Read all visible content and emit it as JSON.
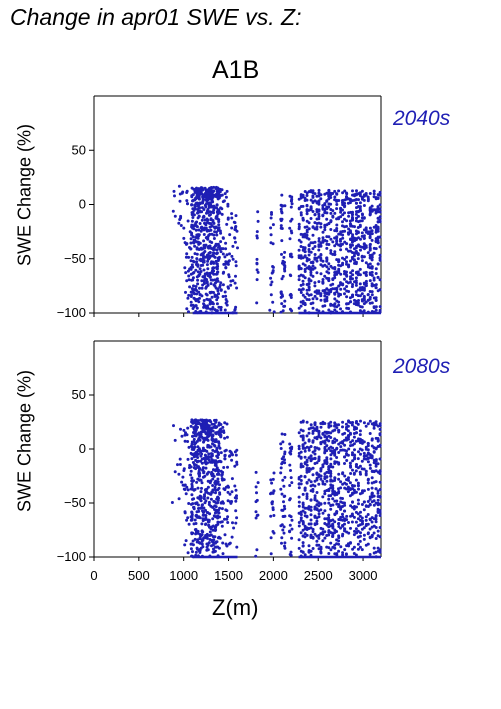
{
  "title": "Change in apr01 SWE vs. Z:",
  "scenario": "A1B",
  "colors": {
    "points": "#1f1fb4",
    "period_text": "#1f1fb4",
    "axes": "#000000"
  },
  "chart_data": [
    {
      "type": "scatter",
      "period": "2040s",
      "xlabel": "Z(m)",
      "ylabel": "SWE Change (%)",
      "xlim": [
        0,
        3200
      ],
      "ylim": [
        -100,
        100
      ],
      "yticks": [
        -100,
        -50,
        0,
        50
      ],
      "xticks": [],
      "clusters": [
        {
          "x": [
            870,
            1000
          ],
          "y": [
            -30,
            17
          ],
          "n": 14
        },
        {
          "x": [
            1000,
            1080
          ],
          "y": [
            -100,
            17
          ],
          "n": 30
        },
        {
          "x": [
            1080,
            1400
          ],
          "y": [
            -100,
            16
          ],
          "n": 500
        },
        {
          "x": [
            1120,
            1420
          ],
          "y": [
            5,
            16
          ],
          "n": 80
        },
        {
          "x": [
            1400,
            1500
          ],
          "y": [
            -100,
            14
          ],
          "n": 60
        },
        {
          "x": [
            1500,
            1600
          ],
          "y": [
            -100,
            0
          ],
          "n": 35
        },
        {
          "x": [
            1800,
            1830
          ],
          "y": [
            -100,
            2
          ],
          "n": 12
        },
        {
          "x": [
            1960,
            2010
          ],
          "y": [
            -100,
            0
          ],
          "n": 20
        },
        {
          "x": [
            2080,
            2130
          ],
          "y": [
            -100,
            12
          ],
          "n": 40
        },
        {
          "x": [
            2180,
            2210
          ],
          "y": [
            -100,
            8
          ],
          "n": 25
        },
        {
          "x": [
            2280,
            3200
          ],
          "y": [
            -100,
            13
          ],
          "n": 900
        }
      ],
      "floor_segments": [
        [
          1100,
          1600
        ],
        [
          2280,
          3200
        ]
      ]
    },
    {
      "type": "scatter",
      "period": "2080s",
      "xlabel": "Z(m)",
      "ylabel": "SWE Change (%)",
      "xlim": [
        0,
        3200
      ],
      "ylim": [
        -100,
        100
      ],
      "yticks": [
        -100,
        -50,
        0,
        50
      ],
      "xticks": [
        0,
        500,
        1000,
        1500,
        2000,
        2500,
        3000
      ],
      "clusters": [
        {
          "x": [
            870,
            1000
          ],
          "y": [
            -50,
            28
          ],
          "n": 14
        },
        {
          "x": [
            1000,
            1080
          ],
          "y": [
            -100,
            28
          ],
          "n": 30
        },
        {
          "x": [
            1080,
            1400
          ],
          "y": [
            -100,
            27
          ],
          "n": 500
        },
        {
          "x": [
            1120,
            1420
          ],
          "y": [
            10,
            27
          ],
          "n": 80
        },
        {
          "x": [
            1400,
            1500
          ],
          "y": [
            -100,
            25
          ],
          "n": 60
        },
        {
          "x": [
            1500,
            1600
          ],
          "y": [
            -100,
            0
          ],
          "n": 35
        },
        {
          "x": [
            1800,
            1830
          ],
          "y": [
            -100,
            -12
          ],
          "n": 12
        },
        {
          "x": [
            1960,
            2010
          ],
          "y": [
            -100,
            -12
          ],
          "n": 20
        },
        {
          "x": [
            2080,
            2130
          ],
          "y": [
            -100,
            15
          ],
          "n": 40
        },
        {
          "x": [
            2180,
            2210
          ],
          "y": [
            -100,
            10
          ],
          "n": 25
        },
        {
          "x": [
            2280,
            3200
          ],
          "y": [
            -100,
            26
          ],
          "n": 900
        }
      ],
      "floor_segments": [
        [
          1100,
          1600
        ],
        [
          2280,
          3200
        ]
      ]
    }
  ]
}
